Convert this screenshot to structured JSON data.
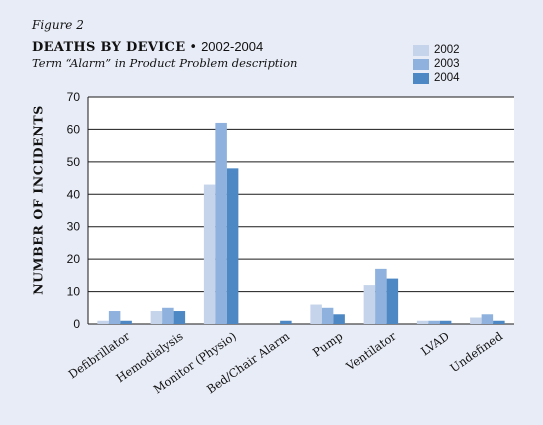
{
  "figure_label": "Figure 2",
  "chart_data": {
    "type": "bar",
    "title": "DEATHS BY DEVICE",
    "title_separator": "•",
    "title_years": "2002-2004",
    "subtitle": "Term “Alarm” in Product Problem description",
    "ylabel": "NUMBER OF INCIDENTS",
    "xlabel": "",
    "ylim": [
      0,
      70
    ],
    "yticks": [
      "0",
      "10",
      "20",
      "30",
      "40",
      "50",
      "60",
      "70"
    ],
    "grid": true,
    "legend_position": "top-right",
    "categories": [
      "Defibrillator",
      "Hemodialysis",
      "Monitor (Physio)",
      "Bed/Chair Alarm",
      "Pump",
      "Ventilator",
      "LVAD",
      "Undefined"
    ],
    "series": [
      {
        "name": "2002",
        "color": "#c5d4ea",
        "values": [
          1,
          4,
          43,
          0,
          6,
          12,
          1,
          2
        ]
      },
      {
        "name": "2003",
        "color": "#8eb1dd",
        "values": [
          4,
          5,
          62,
          0,
          5,
          17,
          1,
          3
        ]
      },
      {
        "name": "2004",
        "color": "#4d88c4",
        "values": [
          1,
          4,
          48,
          1,
          3,
          14,
          1,
          1
        ]
      }
    ]
  }
}
